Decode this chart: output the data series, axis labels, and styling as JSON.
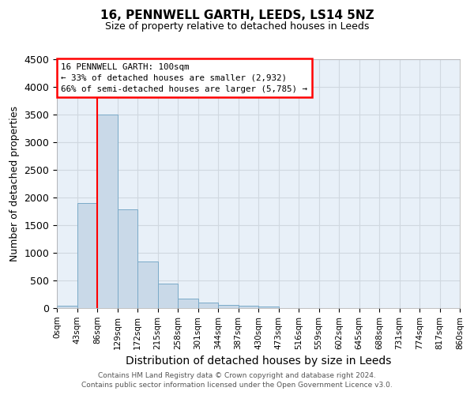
{
  "title1": "16, PENNWELL GARTH, LEEDS, LS14 5NZ",
  "title2": "Size of property relative to detached houses in Leeds",
  "xlabel": "Distribution of detached houses by size in Leeds",
  "ylabel": "Number of detached properties",
  "bin_labels": [
    "0sqm",
    "43sqm",
    "86sqm",
    "129sqm",
    "172sqm",
    "215sqm",
    "258sqm",
    "301sqm",
    "344sqm",
    "387sqm",
    "430sqm",
    "473sqm",
    "516sqm",
    "559sqm",
    "602sqm",
    "645sqm",
    "688sqm",
    "731sqm",
    "774sqm",
    "817sqm",
    "860sqm"
  ],
  "bar_values": [
    40,
    1900,
    3500,
    1780,
    850,
    450,
    165,
    100,
    60,
    45,
    35,
    0,
    0,
    0,
    0,
    0,
    0,
    0,
    0,
    0
  ],
  "bar_color": "#c9d9e8",
  "bar_edgecolor": "#7aaac8",
  "vline_x": 2,
  "vline_color": "red",
  "ylim": [
    0,
    4500
  ],
  "yticks": [
    0,
    500,
    1000,
    1500,
    2000,
    2500,
    3000,
    3500,
    4000,
    4500
  ],
  "annotation_title": "16 PENNWELL GARTH: 100sqm",
  "annotation_line1": "← 33% of detached houses are smaller (2,932)",
  "annotation_line2": "66% of semi-detached houses are larger (5,785) →",
  "annotation_box_color": "white",
  "annotation_box_edgecolor": "red",
  "footer_line1": "Contains HM Land Registry data © Crown copyright and database right 2024.",
  "footer_line2": "Contains public sector information licensed under the Open Government Licence v3.0.",
  "grid_color": "#d0d8e0",
  "background_color": "#e8f0f8"
}
